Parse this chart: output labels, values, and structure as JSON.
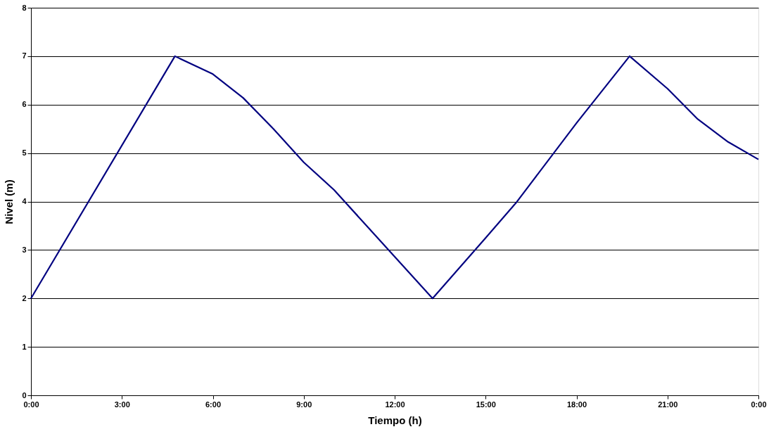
{
  "chart_data": {
    "type": "line",
    "xlabel": "Tiempo (h)",
    "ylabel": "Nivel (m)",
    "x": [
      0,
      4.75,
      6,
      7,
      8,
      9,
      10,
      11,
      13.25,
      15,
      16,
      18,
      19.75,
      21,
      22,
      23,
      24
    ],
    "series": [
      {
        "color": "#000080",
        "values": [
          2,
          7,
          6.63,
          6.14,
          5.5,
          4.81,
          4.24,
          3.55,
          2,
          3.25,
          3.97,
          5.62,
          7,
          6.33,
          5.7,
          5.23,
          4.87
        ]
      }
    ],
    "xlim": [
      0,
      24
    ],
    "xticks": [
      {
        "value": 0,
        "label": "0:00"
      },
      {
        "value": 3,
        "label": "3:00"
      },
      {
        "value": 6,
        "label": "6:00"
      },
      {
        "value": 9,
        "label": "9:00"
      },
      {
        "value": 12,
        "label": "12:00"
      },
      {
        "value": 15,
        "label": "15:00"
      },
      {
        "value": 18,
        "label": "18:00"
      },
      {
        "value": 21,
        "label": "21:00"
      },
      {
        "value": 24,
        "label": "0:00"
      }
    ],
    "ylim": [
      0,
      8
    ],
    "yticks": [
      0,
      1,
      2,
      3,
      4,
      5,
      6,
      7,
      8
    ],
    "grid": "y",
    "marker": "none",
    "line_style": "solid"
  }
}
